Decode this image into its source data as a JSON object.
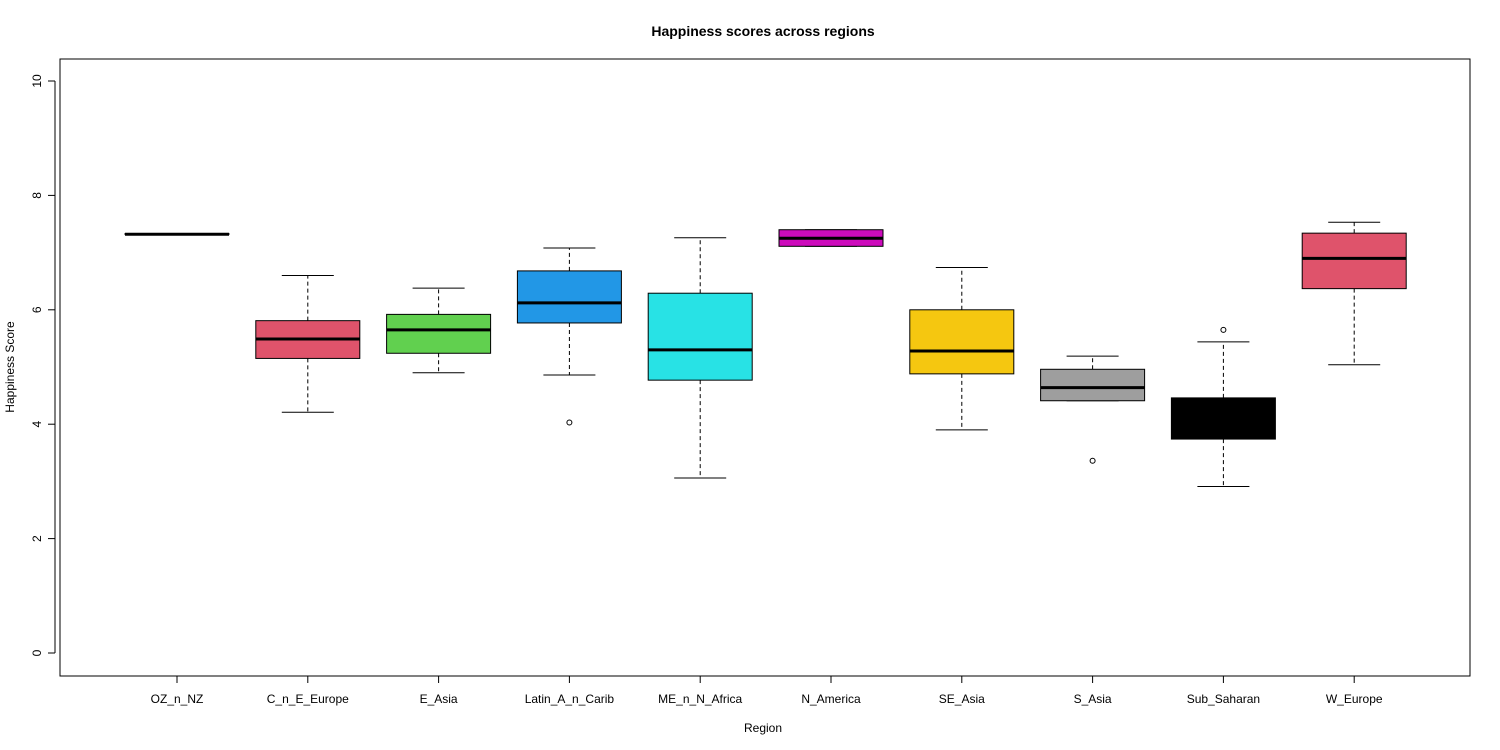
{
  "chart_data": {
    "type": "boxplot",
    "title": "Happiness scores across regions",
    "xlabel": "Region",
    "ylabel": "Happiness Score",
    "ylim": [
      0,
      10
    ],
    "y_ticks": [
      0,
      2,
      4,
      6,
      8,
      10
    ],
    "categories": [
      "OZ_n_NZ",
      "C_n_E_Europe",
      "E_Asia",
      "Latin_A_n_Carib",
      "ME_n_N_Africa",
      "N_America",
      "SE_Asia",
      "S_Asia",
      "Sub_Saharan",
      "W_Europe"
    ],
    "boxes": [
      {
        "category": "OZ_n_NZ",
        "color": "#000000",
        "whisker_low": 7.32,
        "q1": 7.32,
        "median": 7.32,
        "q3": 7.33,
        "whisker_high": 7.33,
        "outliers": []
      },
      {
        "category": "C_n_E_Europe",
        "color": "#DF536B",
        "whisker_low": 4.21,
        "q1": 5.15,
        "median": 5.49,
        "q3": 5.81,
        "whisker_high": 6.6,
        "outliers": []
      },
      {
        "category": "E_Asia",
        "color": "#61D04F",
        "whisker_low": 4.9,
        "q1": 5.24,
        "median": 5.65,
        "q3": 5.92,
        "whisker_high": 6.38,
        "outliers": []
      },
      {
        "category": "Latin_A_n_Carib",
        "color": "#2297E6",
        "whisker_low": 4.86,
        "q1": 5.77,
        "median": 6.12,
        "q3": 6.68,
        "whisker_high": 7.08,
        "outliers": [
          4.03
        ]
      },
      {
        "category": "ME_n_N_Africa",
        "color": "#28E2E5",
        "whisker_low": 3.06,
        "q1": 4.77,
        "median": 5.3,
        "q3": 6.29,
        "whisker_high": 7.26,
        "outliers": []
      },
      {
        "category": "N_America",
        "color": "#CD0BBC",
        "whisker_low": 7.11,
        "q1": 7.11,
        "median": 7.25,
        "q3": 7.4,
        "whisker_high": 7.4,
        "outliers": []
      },
      {
        "category": "SE_Asia",
        "color": "#F5C710",
        "whisker_low": 3.9,
        "q1": 4.88,
        "median": 5.28,
        "q3": 6.0,
        "whisker_high": 6.74,
        "outliers": []
      },
      {
        "category": "S_Asia",
        "color": "#9E9E9E",
        "whisker_low": 4.41,
        "q1": 4.41,
        "median": 4.64,
        "q3": 4.96,
        "whisker_high": 5.19,
        "outliers": [
          3.36
        ]
      },
      {
        "category": "Sub_Saharan",
        "color": "#000000",
        "whisker_low": 2.91,
        "q1": 3.74,
        "median": 4.14,
        "q3": 4.46,
        "whisker_high": 5.44,
        "outliers": [
          5.65
        ]
      },
      {
        "category": "W_Europe",
        "color": "#DF536B",
        "whisker_low": 5.04,
        "q1": 6.37,
        "median": 6.9,
        "q3": 7.34,
        "whisker_high": 7.53,
        "outliers": []
      }
    ]
  }
}
